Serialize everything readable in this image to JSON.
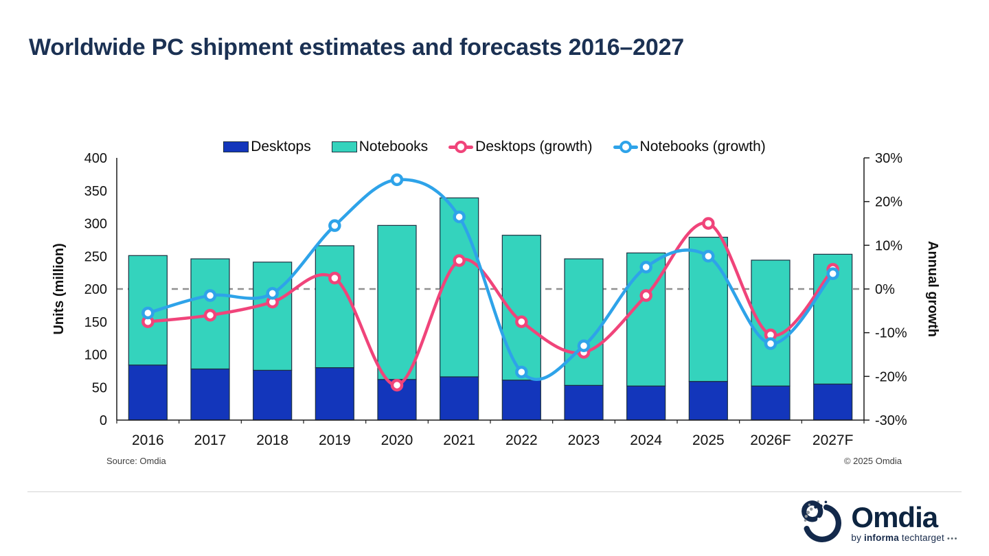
{
  "page": {
    "title": "Worldwide PC shipment estimates and forecasts 2016–2027",
    "source": "Source: Omdia",
    "copyright": "© 2025 Omdia"
  },
  "logo": {
    "name": "Omdia",
    "tagline_by": "by",
    "tagline_informa": "informa",
    "tagline_techtarget": "techtarget",
    "tagline_dots": "•••"
  },
  "colors": {
    "desktops": "#1336bb",
    "notebooks": "#34d3bd",
    "desktops_growth": "#f0447a",
    "notebooks_growth": "#2ea3e9",
    "bar_outline": "#1c3040",
    "zero_line": "#909090",
    "axis_line": "#1a1a1a",
    "title": "#1b3153"
  },
  "chart_data": {
    "type": "combo-stacked-bar-line",
    "title": "Worldwide PC shipment estimates and forecasts 2016–2027",
    "stacked": true,
    "legend_position": "top",
    "grid": false,
    "zero_reference_line": true,
    "categories": [
      "2016",
      "2017",
      "2018",
      "2019",
      "2020",
      "2021",
      "2022",
      "2023",
      "2024",
      "2025",
      "2026F",
      "2027F"
    ],
    "bar_series": [
      {
        "name": "Desktops",
        "color_key": "desktops",
        "axis": "left",
        "values": [
          84,
          78,
          76,
          80,
          62,
          66,
          61,
          53,
          52,
          59,
          52,
          55
        ]
      },
      {
        "name": "Notebooks",
        "color_key": "notebooks",
        "axis": "left",
        "values": [
          167,
          168,
          165,
          186,
          235,
          273,
          221,
          193,
          203,
          220,
          192,
          198
        ]
      }
    ],
    "line_series": [
      {
        "name": "Desktops (growth)",
        "color_key": "desktops_growth",
        "axis": "right",
        "values": [
          -7.5,
          -6,
          -3,
          2.5,
          -22,
          6.5,
          -7.5,
          -14.5,
          -1.5,
          15,
          -10.5,
          4.5
        ]
      },
      {
        "name": "Notebooks (growth)",
        "color_key": "notebooks_growth",
        "axis": "right",
        "values": [
          -5.5,
          -1.5,
          -1,
          14.5,
          25,
          16.5,
          -19,
          -13,
          5,
          7.5,
          -12.5,
          3.5
        ]
      }
    ],
    "left_axis": {
      "label": "Units (million)",
      "min": 0,
      "max": 400,
      "ticks": [
        {
          "v": 0,
          "label": "0"
        },
        {
          "v": 50,
          "label": "50"
        },
        {
          "v": 100,
          "label": "100"
        },
        {
          "v": 150,
          "label": "150"
        },
        {
          "v": 200,
          "label": "200"
        },
        {
          "v": 250,
          "label": "250"
        },
        {
          "v": 300,
          "label": "300"
        },
        {
          "v": 350,
          "label": "350"
        },
        {
          "v": 400,
          "label": "400"
        }
      ]
    },
    "right_axis": {
      "label": "Annual growth",
      "min": -30,
      "max": 30,
      "ticks": [
        {
          "v": 30,
          "label": "30%"
        },
        {
          "v": 20,
          "label": "20%"
        },
        {
          "v": 10,
          "label": "10%"
        },
        {
          "v": 0,
          "label": "0%"
        },
        {
          "v": -10,
          "label": "-10%"
        },
        {
          "v": -20,
          "label": "-20%"
        },
        {
          "v": -30,
          "label": "-30%"
        }
      ]
    }
  }
}
